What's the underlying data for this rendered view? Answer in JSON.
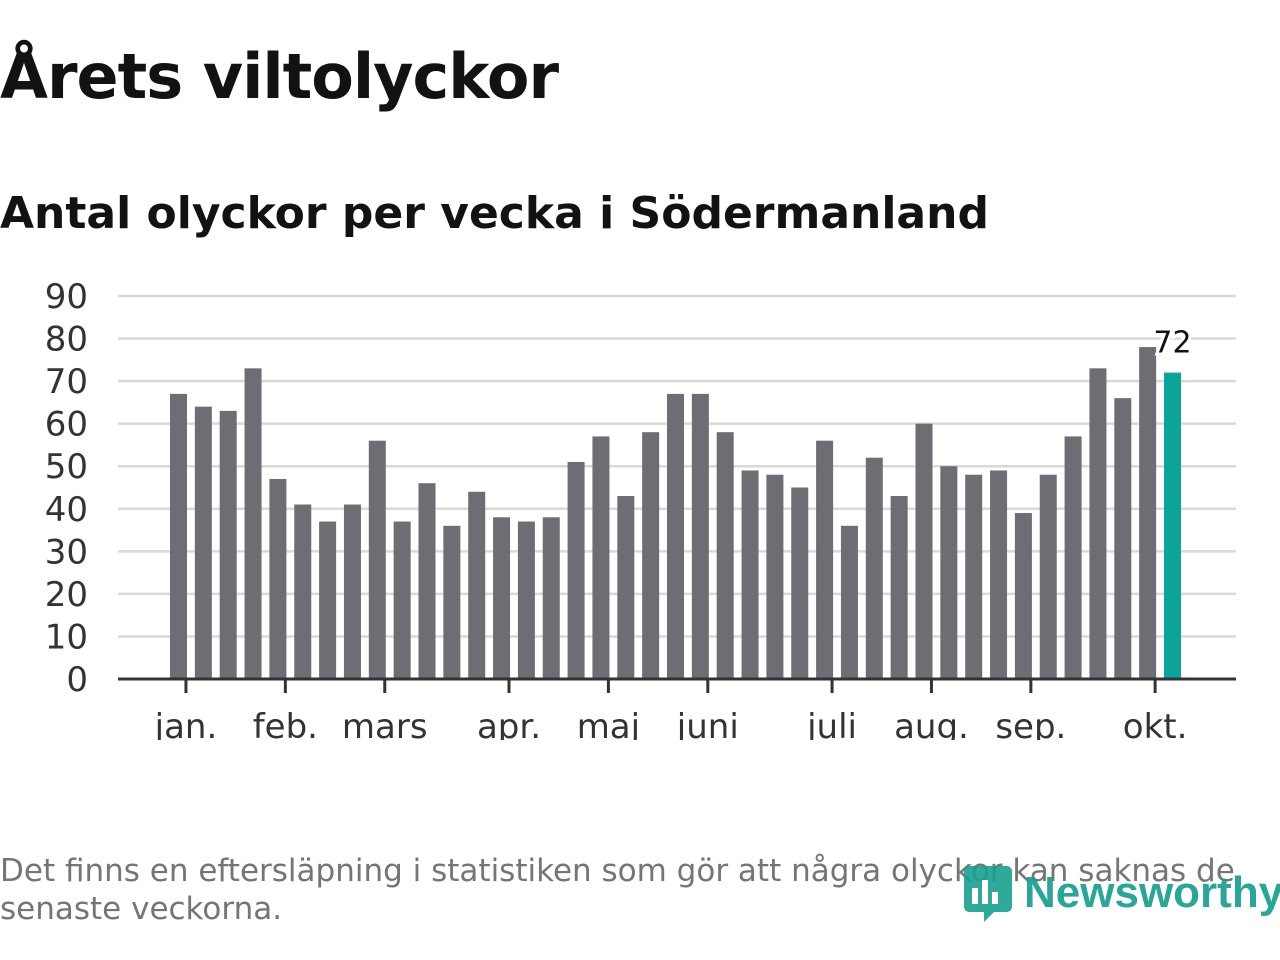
{
  "title": "Årets viltolyckor",
  "subtitle": "Antal olyckor per vecka i Södermanland",
  "footnote": "Det finns en eftersläpning i statistiken som gör att några olyckor kan saknas de senaste veckorna.",
  "logo_text": "Newsworthy",
  "colors": {
    "bar": "#6e6d74",
    "highlight": "#0ea399",
    "grid": "#d9d9d9",
    "axis": "#333333",
    "logo": "#1a9e8f"
  },
  "chart_data": {
    "type": "bar",
    "title": "Antal olyckor per vecka i Södermanland",
    "xlabel": "",
    "ylabel": "",
    "ylim": [
      0,
      90
    ],
    "yticks": [
      0,
      10,
      20,
      30,
      40,
      50,
      60,
      70,
      80,
      90
    ],
    "grid": true,
    "weeks": [
      1,
      2,
      3,
      4,
      5,
      6,
      7,
      8,
      9,
      10,
      11,
      12,
      13,
      14,
      15,
      16,
      17,
      18,
      19,
      20,
      21,
      22,
      23,
      24,
      25,
      26,
      27,
      28,
      29,
      30,
      31,
      32,
      33,
      34,
      35,
      36,
      37,
      38,
      39,
      40,
      41
    ],
    "values": [
      67,
      64,
      63,
      73,
      47,
      41,
      37,
      41,
      56,
      37,
      46,
      36,
      44,
      38,
      37,
      38,
      51,
      57,
      43,
      58,
      67,
      67,
      58,
      49,
      48,
      45,
      56,
      36,
      52,
      43,
      60,
      50,
      48,
      49,
      39,
      48,
      57,
      73,
      66,
      78,
      72
    ],
    "month_labels": [
      {
        "label": "jan.",
        "week_index": 0.3
      },
      {
        "label": "feb.",
        "week_index": 4.3
      },
      {
        "label": "mars",
        "week_index": 8.3
      },
      {
        "label": "apr.",
        "week_index": 13.3
      },
      {
        "label": "maj",
        "week_index": 17.3
      },
      {
        "label": "juni",
        "week_index": 21.3
      },
      {
        "label": "juli",
        "week_index": 26.3
      },
      {
        "label": "aug.",
        "week_index": 30.3
      },
      {
        "label": "sep.",
        "week_index": 34.3
      },
      {
        "label": "okt.",
        "week_index": 39.3
      }
    ],
    "highlight_index": 40,
    "highlight_label": "72"
  }
}
